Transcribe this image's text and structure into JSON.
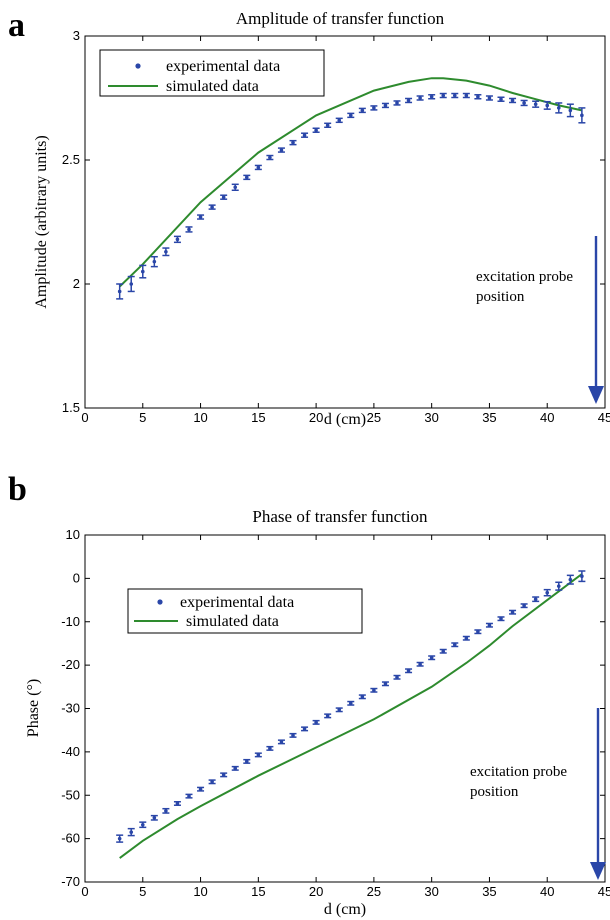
{
  "chart_data": [
    {
      "panel": "a",
      "type": "scatter",
      "title": "Amplitude of transfer function",
      "xlabel": "d (cm)",
      "ylabel": "Amplitude (arbitrary units)",
      "xlim": [
        0,
        45
      ],
      "ylim": [
        1.5,
        3
      ],
      "xticks": [
        0,
        5,
        10,
        15,
        20,
        25,
        30,
        35,
        40,
        45
      ],
      "yticks": [
        1.5,
        2,
        2.5,
        3
      ],
      "grid": false,
      "legend_position": "top-left",
      "annotation": {
        "lines": [
          "excitation probe",
          "position"
        ],
        "arrow_x": 45.5
      },
      "series": [
        {
          "name": "experimental data",
          "style": "points-with-errorbars",
          "color": "#2a46a8",
          "x": [
            3,
            4,
            5,
            6,
            7,
            8,
            9,
            10,
            11,
            12,
            13,
            14,
            15,
            16,
            17,
            18,
            19,
            20,
            21,
            22,
            23,
            24,
            25,
            26,
            27,
            28,
            29,
            30,
            31,
            32,
            33,
            34,
            35,
            36,
            37,
            38,
            39,
            40,
            41,
            42,
            43
          ],
          "y": [
            1.97,
            2.0,
            2.05,
            2.09,
            2.13,
            2.18,
            2.22,
            2.27,
            2.31,
            2.35,
            2.39,
            2.43,
            2.47,
            2.51,
            2.54,
            2.57,
            2.6,
            2.62,
            2.64,
            2.66,
            2.68,
            2.7,
            2.71,
            2.72,
            2.73,
            2.74,
            2.75,
            2.755,
            2.76,
            2.76,
            2.76,
            2.755,
            2.75,
            2.745,
            2.74,
            2.73,
            2.725,
            2.72,
            2.71,
            2.7,
            2.68
          ],
          "err": [
            0.03,
            0.03,
            0.025,
            0.02,
            0.015,
            0.012,
            0.01,
            0.008,
            0.008,
            0.008,
            0.012,
            0.008,
            0.008,
            0.008,
            0.008,
            0.008,
            0.008,
            0.008,
            0.008,
            0.008,
            0.008,
            0.008,
            0.008,
            0.008,
            0.008,
            0.008,
            0.008,
            0.008,
            0.008,
            0.008,
            0.008,
            0.008,
            0.008,
            0.008,
            0.008,
            0.01,
            0.012,
            0.015,
            0.02,
            0.025,
            0.03
          ]
        },
        {
          "name": "simulated data",
          "style": "line",
          "color": "#2e8b2e",
          "x": [
            3,
            5,
            10,
            15,
            20,
            25,
            28,
            30,
            31,
            33,
            35,
            37,
            39,
            41,
            43
          ],
          "y": [
            1.99,
            2.08,
            2.33,
            2.53,
            2.68,
            2.78,
            2.815,
            2.83,
            2.83,
            2.82,
            2.8,
            2.77,
            2.745,
            2.72,
            2.7
          ]
        }
      ]
    },
    {
      "panel": "b",
      "type": "scatter",
      "title": "Phase of transfer function",
      "xlabel": "d (cm)",
      "ylabel": "Phase (°)",
      "xlim": [
        0,
        45
      ],
      "ylim": [
        -70,
        10
      ],
      "xticks": [
        0,
        5,
        10,
        15,
        20,
        25,
        30,
        35,
        40,
        45
      ],
      "yticks": [
        10,
        0,
        -10,
        -20,
        -30,
        -40,
        -50,
        -60,
        -70
      ],
      "grid": false,
      "legend_position": "top-left",
      "annotation": {
        "lines": [
          "excitation probe",
          "position"
        ],
        "arrow_x": 45.5
      },
      "series": [
        {
          "name": "experimental data",
          "style": "points-with-errorbars",
          "color": "#2a46a8",
          "x": [
            3,
            4,
            5,
            6,
            7,
            8,
            9,
            10,
            11,
            12,
            13,
            14,
            15,
            16,
            17,
            18,
            19,
            20,
            21,
            22,
            23,
            24,
            25,
            26,
            27,
            28,
            29,
            30,
            31,
            32,
            33,
            34,
            35,
            36,
            37,
            38,
            39,
            40,
            41,
            42,
            43
          ],
          "y": [
            -60,
            -58.5,
            -56.8,
            -55.2,
            -53.6,
            -51.9,
            -50.2,
            -48.6,
            -46.9,
            -45.3,
            -43.8,
            -42.2,
            -40.7,
            -39.2,
            -37.7,
            -36.2,
            -34.7,
            -33.2,
            -31.7,
            -30.3,
            -28.8,
            -27.3,
            -25.8,
            -24.3,
            -22.8,
            -21.3,
            -19.8,
            -18.3,
            -16.8,
            -15.3,
            -13.8,
            -12.3,
            -10.8,
            -9.3,
            -7.8,
            -6.3,
            -4.8,
            -3.3,
            -1.8,
            -0.3,
            0.5
          ],
          "err": [
            0.8,
            0.8,
            0.6,
            0.5,
            0.5,
            0.4,
            0.4,
            0.4,
            0.4,
            0.4,
            0.4,
            0.4,
            0.4,
            0.4,
            0.4,
            0.4,
            0.4,
            0.4,
            0.4,
            0.4,
            0.4,
            0.4,
            0.4,
            0.4,
            0.4,
            0.4,
            0.4,
            0.4,
            0.4,
            0.4,
            0.4,
            0.4,
            0.4,
            0.4,
            0.4,
            0.4,
            0.5,
            0.7,
            0.9,
            1.0,
            1.2
          ]
        },
        {
          "name": "simulated data",
          "style": "line",
          "color": "#2e8b2e",
          "x": [
            3,
            5,
            8,
            10,
            15,
            20,
            25,
            30,
            33,
            35,
            37,
            40,
            42,
            43
          ],
          "y": [
            -64.5,
            -60.5,
            -55.5,
            -52.5,
            -45.5,
            -39,
            -32.5,
            -25,
            -19.5,
            -15.5,
            -11,
            -5,
            -1,
            1
          ]
        }
      ]
    }
  ]
}
